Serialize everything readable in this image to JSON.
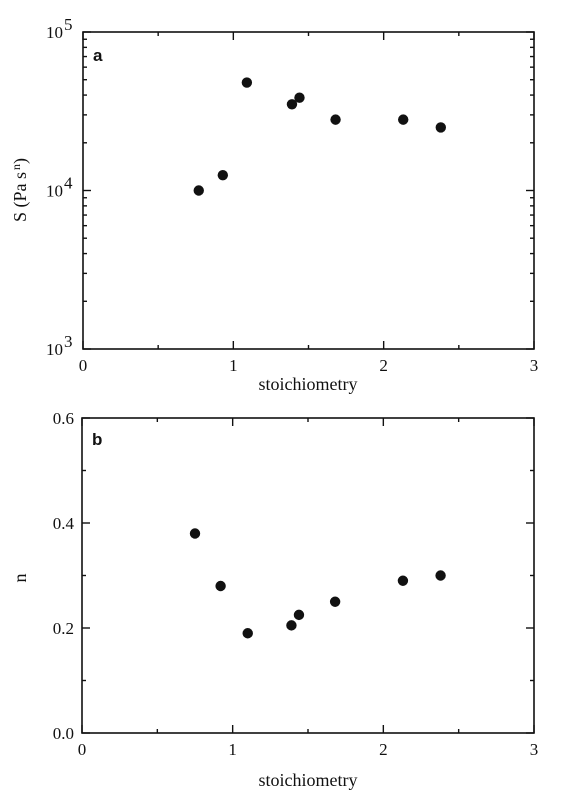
{
  "chart_data": [
    {
      "type": "scatter",
      "panel_label": "a",
      "xlabel": "stoichiometry",
      "ylabel": "S (Pa s",
      "ylabel_sup": "n",
      "ylabel_close": ")",
      "xlim": [
        0,
        3
      ],
      "ylim": [
        1000,
        100000
      ],
      "yscale": "log",
      "x_ticks": [
        "0",
        "1",
        "2",
        "3"
      ],
      "y_ticks": [
        {
          "base": "10",
          "exp": "3",
          "value": 1000
        },
        {
          "base": "10",
          "exp": "4",
          "value": 10000
        },
        {
          "base": "10",
          "exp": "5",
          "value": 100000
        }
      ],
      "grid": false,
      "x": [
        0.77,
        0.93,
        1.09,
        1.39,
        1.44,
        1.68,
        2.13,
        2.38
      ],
      "y": [
        10000,
        12500,
        48000,
        35000,
        38500,
        28000,
        28000,
        25000
      ]
    },
    {
      "type": "scatter",
      "panel_label": "b",
      "xlabel": "stoichiometry",
      "ylabel": "n",
      "xlim": [
        0,
        3
      ],
      "ylim": [
        0,
        0.6
      ],
      "yscale": "linear",
      "x_ticks": [
        "0",
        "1",
        "2",
        "3"
      ],
      "y_ticks": [
        "0.0",
        "0.2",
        "0.4",
        "0.6"
      ],
      "grid": false,
      "x": [
        0.75,
        0.92,
        1.1,
        1.39,
        1.44,
        1.68,
        2.13,
        2.38
      ],
      "y": [
        0.38,
        0.28,
        0.19,
        0.205,
        0.225,
        0.25,
        0.29,
        0.3
      ]
    }
  ]
}
